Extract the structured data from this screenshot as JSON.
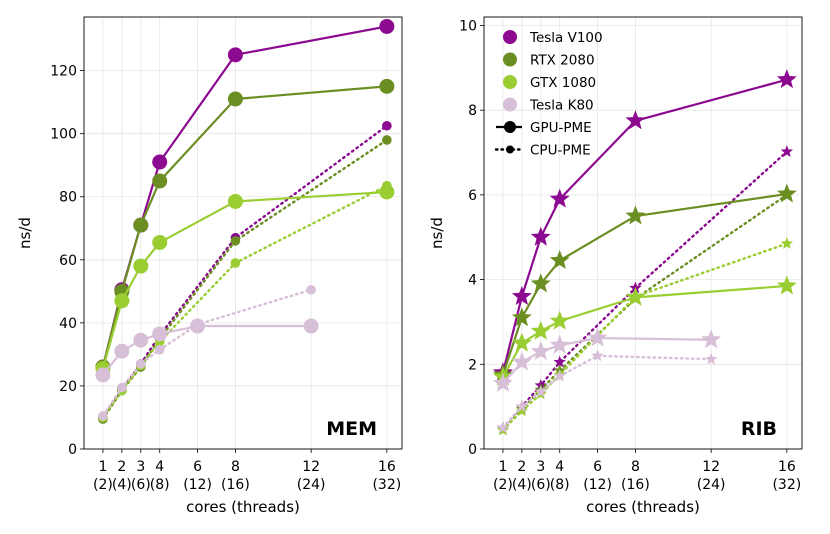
{
  "chart_data": [
    {
      "type": "line",
      "title": "",
      "panel_label": "MEM",
      "xlabel": "cores (threads)",
      "ylabel": "ns/d",
      "ylim": [
        0,
        137
      ],
      "yticks": [
        0,
        20,
        40,
        60,
        80,
        100,
        120
      ],
      "xlim": [
        0,
        16.8
      ],
      "xticks": [
        1,
        2,
        3,
        4,
        6,
        8,
        12,
        16
      ],
      "xtick_labels": [
        "1",
        "2",
        "3",
        "4",
        "6",
        "8",
        "12",
        "16"
      ],
      "xtick_sublabels": [
        "(2)",
        "(4)",
        "(6)",
        "(8)",
        "(12)",
        "(16)",
        "(24)",
        "(32)"
      ],
      "grid": true,
      "series": [
        {
          "name": "Tesla V100",
          "variant": "GPU-PME",
          "color": "#8b0a8f",
          "x": [
            1,
            2,
            3,
            4,
            8,
            16
          ],
          "y": [
            26,
            50.5,
            71,
            91,
            125,
            134
          ]
        },
        {
          "name": "RTX 2080",
          "variant": "GPU-PME",
          "color": "#6b8e23",
          "x": [
            1,
            2,
            3,
            4,
            8,
            16
          ],
          "y": [
            26,
            50,
            71,
            85,
            111,
            115
          ]
        },
        {
          "name": "GTX 1080",
          "variant": "GPU-PME",
          "color": "#9acd32",
          "x": [
            1,
            2,
            3,
            4,
            8,
            16
          ],
          "y": [
            25.5,
            47,
            58,
            65.5,
            78.5,
            81.5
          ]
        },
        {
          "name": "Tesla K80",
          "variant": "GPU-PME",
          "color": "#d8bfd8",
          "x": [
            1,
            2,
            3,
            4,
            6,
            12
          ],
          "y": [
            23.5,
            31,
            34.5,
            36.5,
            39,
            39
          ]
        },
        {
          "name": "Tesla V100",
          "variant": "CPU-PME",
          "color": "#8b0a8f",
          "x": [
            1,
            2,
            3,
            4,
            8,
            16
          ],
          "y": [
            10,
            19,
            27,
            36,
            67,
            102.5
          ]
        },
        {
          "name": "RTX 2080",
          "variant": "CPU-PME",
          "color": "#6b8e23",
          "x": [
            1,
            2,
            3,
            4,
            8,
            16
          ],
          "y": [
            9.5,
            18.5,
            26,
            35,
            66,
            98
          ]
        },
        {
          "name": "GTX 1080",
          "variant": "CPU-PME",
          "color": "#9acd32",
          "x": [
            1,
            2,
            3,
            4,
            8,
            16
          ],
          "y": [
            10,
            18.5,
            26.5,
            34,
            59,
            83.5
          ]
        },
        {
          "name": "Tesla K80",
          "variant": "CPU-PME",
          "color": "#d8bfd8",
          "x": [
            1,
            2,
            3,
            4,
            6,
            12
          ],
          "y": [
            10.5,
            19.5,
            27,
            31.5,
            39.5,
            50.5
          ]
        }
      ]
    },
    {
      "type": "line",
      "title": "",
      "panel_label": "RIB",
      "xlabel": "cores (threads)",
      "ylabel": "ns/d",
      "ylim": [
        0,
        10.2
      ],
      "yticks": [
        0,
        2,
        4,
        6,
        8,
        10
      ],
      "xlim": [
        0,
        16.8
      ],
      "xticks": [
        1,
        2,
        3,
        4,
        6,
        8,
        12,
        16
      ],
      "xtick_labels": [
        "1",
        "2",
        "3",
        "4",
        "6",
        "8",
        "12",
        "16"
      ],
      "xtick_sublabels": [
        "(2)",
        "(4)",
        "(6)",
        "(8)",
        "(12)",
        "(16)",
        "(24)",
        "(32)"
      ],
      "grid": true,
      "legend": {
        "position": "top-left",
        "entries": [
          "Tesla V100",
          "RTX 2080",
          "GTX 1080",
          "Tesla K80",
          "GPU-PME",
          "CPU-PME"
        ]
      },
      "series": [
        {
          "name": "Tesla V100",
          "variant": "GPU-PME",
          "color": "#8b0a8f",
          "x": [
            1,
            2,
            3,
            4,
            8,
            16
          ],
          "y": [
            1.8,
            3.6,
            5.0,
            5.9,
            7.75,
            8.72
          ]
        },
        {
          "name": "RTX 2080",
          "variant": "GPU-PME",
          "color": "#6b8e23",
          "x": [
            1,
            2,
            3,
            4,
            8,
            16
          ],
          "y": [
            1.75,
            3.1,
            3.9,
            4.45,
            5.5,
            6.02
          ]
        },
        {
          "name": "GTX 1080",
          "variant": "GPU-PME",
          "color": "#9acd32",
          "x": [
            1,
            2,
            3,
            4,
            8,
            16
          ],
          "y": [
            1.7,
            2.5,
            2.78,
            3.02,
            3.58,
            3.85
          ]
        },
        {
          "name": "Tesla K80",
          "variant": "GPU-PME",
          "color": "#d8bfd8",
          "x": [
            1,
            2,
            3,
            4,
            6,
            12
          ],
          "y": [
            1.55,
            2.05,
            2.3,
            2.45,
            2.62,
            2.58
          ]
        },
        {
          "name": "Tesla V100",
          "variant": "CPU-PME",
          "color": "#8b0a8f",
          "x": [
            1,
            2,
            3,
            4,
            8,
            16
          ],
          "y": [
            0.5,
            1.0,
            1.5,
            2.05,
            3.8,
            7.02
          ]
        },
        {
          "name": "RTX 2080",
          "variant": "CPU-PME",
          "color": "#6b8e23",
          "x": [
            1,
            2,
            3,
            4,
            8,
            16
          ],
          "y": [
            0.45,
            0.95,
            1.4,
            1.85,
            3.55,
            6.0
          ]
        },
        {
          "name": "GTX 1080",
          "variant": "CPU-PME",
          "color": "#9acd32",
          "x": [
            1,
            2,
            3,
            4,
            8,
            16
          ],
          "y": [
            0.45,
            0.9,
            1.3,
            1.75,
            3.6,
            4.85
          ]
        },
        {
          "name": "Tesla K80",
          "variant": "CPU-PME",
          "color": "#d8bfd8",
          "x": [
            1,
            2,
            3,
            4,
            6,
            12
          ],
          "y": [
            0.5,
            1.0,
            1.35,
            1.72,
            2.2,
            2.12
          ]
        }
      ]
    }
  ]
}
